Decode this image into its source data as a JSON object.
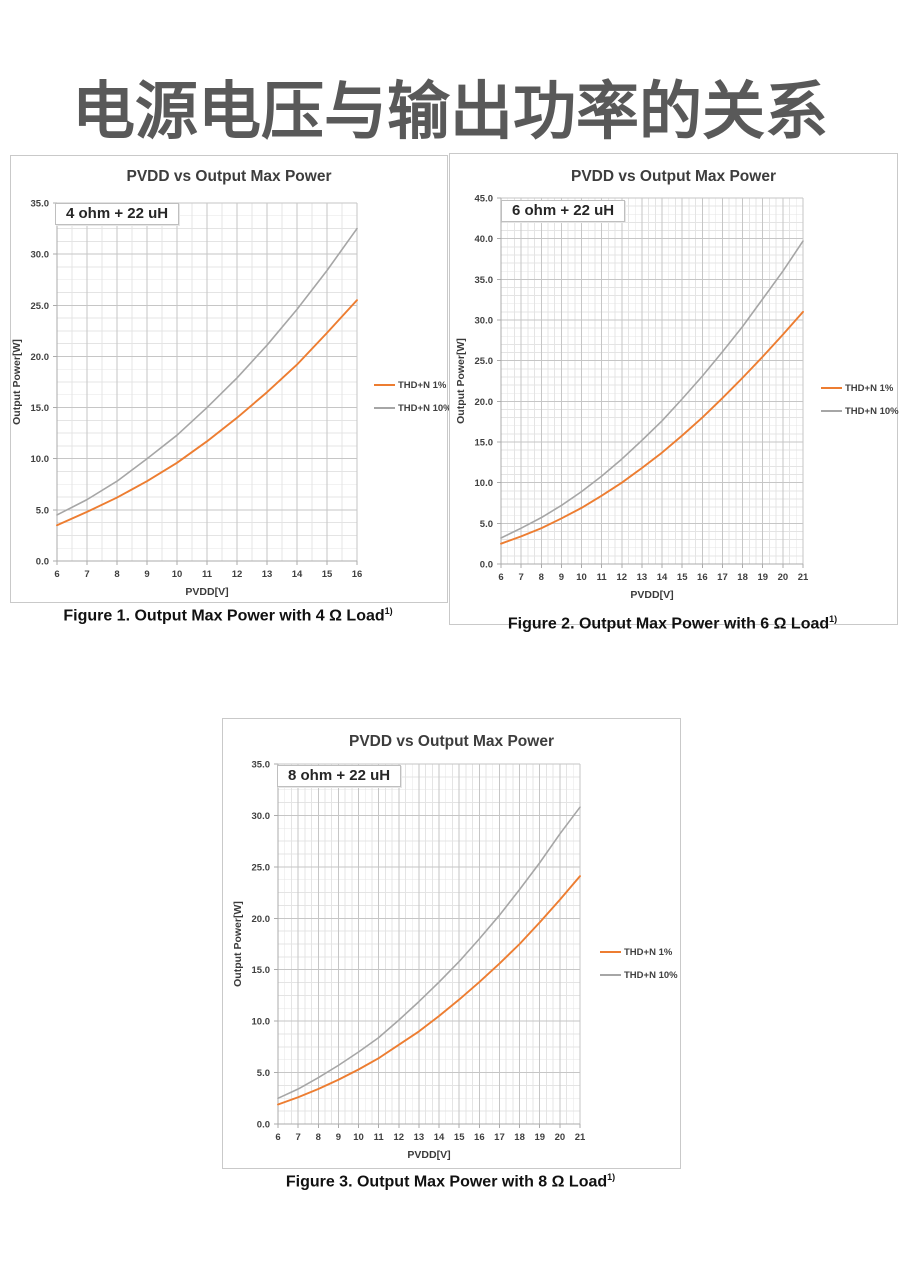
{
  "page_title": "电源电压与输出功率的关系",
  "colors": {
    "thd1_orange": "#ED7D31",
    "thd10_gray": "#A6A6A6",
    "grid_minor": "#e4e4e4",
    "grid_major": "#c6c6c6",
    "axis_line": "#ababab",
    "tick_text": "#404040",
    "title_gray": "#595959"
  },
  "chart_data": [
    {
      "type": "line",
      "title": "PVDD vs Output Max Power",
      "annotation": "4 ohm + 22 uH",
      "xlabel": "PVDD[V]",
      "ylabel": "Output Power[W]",
      "xlim": [
        6,
        16
      ],
      "ylim": [
        0,
        35
      ],
      "x_major": 1,
      "y_major": 5,
      "legend_position": "right",
      "grid": true,
      "x": [
        6,
        7,
        8,
        9,
        10,
        11,
        12,
        13,
        14,
        15,
        16
      ],
      "series": [
        {
          "name": "THD+N 1%",
          "color": "#ED7D31",
          "values": [
            3.5,
            4.8,
            6.2,
            7.8,
            9.6,
            11.7,
            14.0,
            16.5,
            19.2,
            22.3,
            25.5
          ]
        },
        {
          "name": "THD+N 10%",
          "color": "#A6A6A6",
          "values": [
            4.5,
            6.0,
            7.8,
            10.0,
            12.3,
            15.0,
            17.9,
            21.1,
            24.6,
            28.4,
            32.5
          ]
        }
      ],
      "caption": {
        "text": "Figure 1. Output Max Power with 4 Ω Load",
        "sup": "1)"
      }
    },
    {
      "type": "line",
      "title": "PVDD vs Output Max Power",
      "annotation": "6 ohm + 22 uH",
      "xlabel": "PVDD[V]",
      "ylabel": "Output Power[W]",
      "xlim": [
        6,
        21
      ],
      "ylim": [
        0,
        45
      ],
      "x_major": 1,
      "y_major": 5,
      "legend_position": "right",
      "grid": true,
      "x": [
        6,
        7,
        8,
        9,
        10,
        11,
        12,
        13,
        14,
        15,
        16,
        17,
        18,
        19,
        20,
        21
      ],
      "series": [
        {
          "name": "THD+N 1%",
          "color": "#ED7D31",
          "values": [
            2.5,
            3.4,
            4.4,
            5.6,
            6.9,
            8.4,
            10.0,
            11.8,
            13.7,
            15.8,
            18.0,
            20.4,
            22.9,
            25.5,
            28.2,
            31.0
          ]
        },
        {
          "name": "THD+N 10%",
          "color": "#A6A6A6",
          "values": [
            3.2,
            4.4,
            5.7,
            7.2,
            8.9,
            10.8,
            12.9,
            15.2,
            17.6,
            20.3,
            23.1,
            26.1,
            29.2,
            32.6,
            36.0,
            39.7
          ]
        }
      ],
      "caption": {
        "text": "Figure 2. Output Max Power with 6 Ω Load",
        "sup": "1)"
      }
    },
    {
      "type": "line",
      "title": "PVDD vs Output Max Power",
      "annotation": "8 ohm + 22 uH",
      "xlabel": "PVDD[V]",
      "ylabel": "Output Power[W]",
      "xlim": [
        6,
        21
      ],
      "ylim": [
        0,
        35
      ],
      "x_major": 1,
      "y_major": 5,
      "legend_position": "right",
      "grid": true,
      "x": [
        6,
        7,
        8,
        9,
        10,
        11,
        12,
        13,
        14,
        15,
        16,
        17,
        18,
        19,
        20,
        21
      ],
      "series": [
        {
          "name": "THD+N 1%",
          "color": "#ED7D31",
          "values": [
            1.9,
            2.6,
            3.4,
            4.3,
            5.3,
            6.4,
            7.7,
            9.0,
            10.5,
            12.1,
            13.8,
            15.6,
            17.5,
            19.6,
            21.8,
            24.1
          ]
        },
        {
          "name": "THD+N 10%",
          "color": "#A6A6A6",
          "values": [
            2.5,
            3.4,
            4.5,
            5.7,
            7.0,
            8.4,
            10.1,
            11.9,
            13.8,
            15.8,
            18.0,
            20.3,
            22.8,
            25.4,
            28.2,
            30.8
          ]
        }
      ],
      "caption": {
        "text": "Figure 3. Output Max Power with 8 Ω Load",
        "sup": "1)"
      }
    }
  ]
}
